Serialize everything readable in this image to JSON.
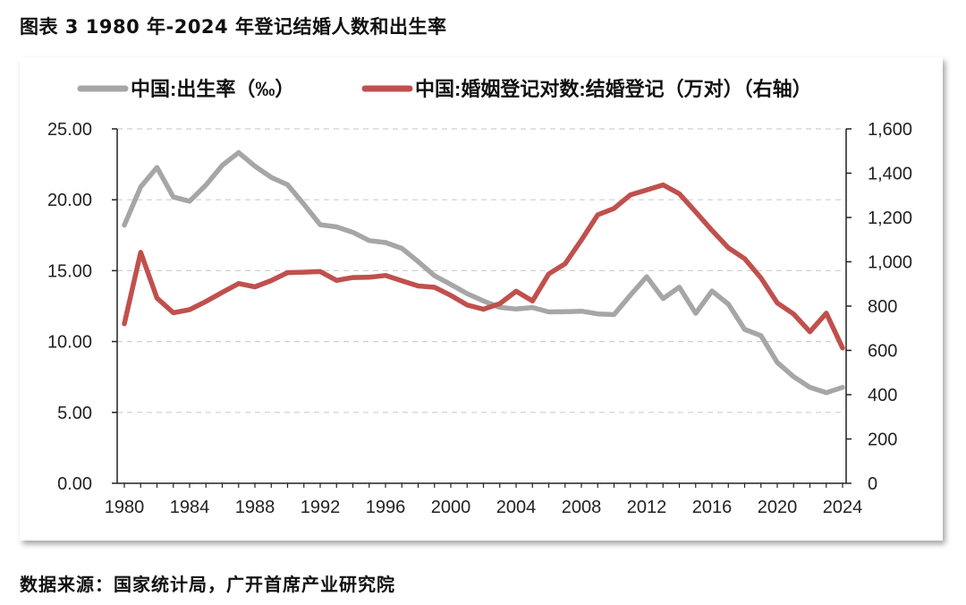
{
  "title": "图表 3 1980 年-2024 年登记结婚人数和出生率",
  "source": "数据来源：国家统计局，广开首席产业研究院",
  "chart_data": {
    "type": "line",
    "x": [
      1980,
      1981,
      1982,
      1983,
      1984,
      1985,
      1986,
      1987,
      1988,
      1989,
      1990,
      1991,
      1992,
      1993,
      1994,
      1995,
      1996,
      1997,
      1998,
      1999,
      2000,
      2001,
      2002,
      2003,
      2004,
      2005,
      2006,
      2007,
      2008,
      2009,
      2010,
      2011,
      2012,
      2013,
      2014,
      2015,
      2016,
      2017,
      2018,
      2019,
      2020,
      2021,
      2022,
      2023,
      2024
    ],
    "x_ticks": [
      "1980",
      "1984",
      "1988",
      "1992",
      "1996",
      "2000",
      "2004",
      "2008",
      "2012",
      "2016",
      "2020",
      "2024"
    ],
    "y_left": {
      "lim": [
        0,
        25
      ],
      "ticks": [
        "0.00",
        "5.00",
        "10.00",
        "15.00",
        "20.00",
        "25.00"
      ]
    },
    "y_right": {
      "lim": [
        0,
        1600
      ],
      "ticks": [
        "0",
        "200",
        "400",
        "600",
        "800",
        "1,000",
        "1,200",
        "1,400",
        "1,600"
      ]
    },
    "grid": true,
    "legend_position": "top",
    "series": [
      {
        "name": "中国:出生率（‰）",
        "axis": "left",
        "color": "#a6a6a6",
        "values": [
          18.21,
          20.91,
          22.28,
          20.19,
          19.9,
          21.04,
          22.43,
          23.33,
          22.37,
          21.58,
          21.06,
          19.68,
          18.24,
          18.09,
          17.7,
          17.12,
          16.98,
          16.57,
          15.64,
          14.64,
          14.03,
          13.38,
          12.86,
          12.41,
          12.29,
          12.4,
          12.09,
          12.1,
          12.14,
          11.95,
          11.9,
          13.27,
          14.57,
          13.03,
          13.83,
          11.99,
          13.57,
          12.64,
          10.86,
          10.41,
          8.52,
          7.52,
          6.77,
          6.39,
          6.77
        ]
      },
      {
        "name": "中国:婚姻登记对数:结婚登记（万对）（右轴）",
        "axis": "right",
        "color": "#c0504d",
        "values": [
          720,
          1043,
          836,
          770,
          784,
          821,
          862,
          902,
          887,
          915,
          951,
          953,
          956,
          916,
          929,
          930,
          938,
          914,
          891,
          885,
          848,
          805,
          786,
          811,
          867,
          823,
          945,
          991,
          1098,
          1212,
          1241,
          1302,
          1324,
          1347,
          1307,
          1225,
          1142,
          1063,
          1014,
          927,
          814,
          764,
          684,
          768,
          611
        ]
      }
    ]
  }
}
